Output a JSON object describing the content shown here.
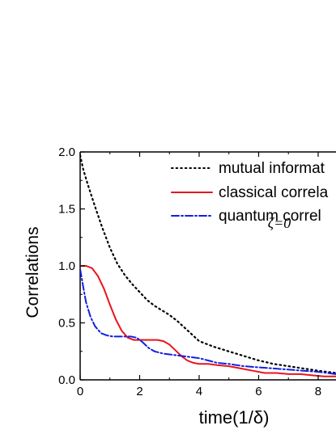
{
  "chart_data": {
    "type": "line",
    "xlabel": "time(1/δ)",
    "ylabel": "Correlations",
    "xlim": [
      0,
      8.6
    ],
    "ylim": [
      0,
      2.0
    ],
    "xticks": [
      0,
      2,
      4,
      6,
      8
    ],
    "xtick_labels": [
      "0",
      "2",
      "4",
      "6",
      "8"
    ],
    "yticks": [
      0,
      0.5,
      1.0,
      1.5,
      2.0
    ],
    "ytick_labels": [
      "0.0",
      "0.5",
      "1.0",
      "1.5",
      "2.0"
    ],
    "annotation": "ζ=0",
    "legend_position": "top-right",
    "series": [
      {
        "name": "mutual informat",
        "color": "#000000",
        "style": "dotted",
        "x": [
          0,
          0.1,
          0.25,
          0.5,
          0.75,
          1,
          1.25,
          1.5,
          1.75,
          2,
          2.25,
          2.5,
          2.75,
          3,
          3.25,
          3.5,
          3.75,
          4,
          4.5,
          5,
          5.5,
          6,
          6.5,
          7,
          7.5,
          8,
          8.6
        ],
        "y": [
          1.97,
          1.85,
          1.72,
          1.52,
          1.33,
          1.16,
          1.02,
          0.92,
          0.84,
          0.77,
          0.7,
          0.65,
          0.61,
          0.57,
          0.52,
          0.46,
          0.4,
          0.34,
          0.29,
          0.25,
          0.21,
          0.17,
          0.14,
          0.12,
          0.1,
          0.08,
          0.06
        ]
      },
      {
        "name": "classical correla",
        "color": "#e8141b",
        "style": "solid",
        "x": [
          0,
          0.2,
          0.4,
          0.6,
          0.8,
          1,
          1.2,
          1.4,
          1.6,
          1.8,
          2,
          2.2,
          2.4,
          2.6,
          2.8,
          3,
          3.2,
          3.4,
          3.6,
          3.8,
          4,
          4.3,
          4.6,
          5,
          5.4,
          5.8,
          6.2,
          6.6,
          7,
          7.4,
          7.8,
          8.2,
          8.6
        ],
        "y": [
          1.0,
          1.0,
          0.98,
          0.91,
          0.8,
          0.66,
          0.53,
          0.43,
          0.37,
          0.35,
          0.35,
          0.35,
          0.35,
          0.35,
          0.34,
          0.31,
          0.26,
          0.21,
          0.17,
          0.15,
          0.14,
          0.14,
          0.13,
          0.12,
          0.1,
          0.08,
          0.06,
          0.06,
          0.05,
          0.05,
          0.04,
          0.03,
          0.03
        ]
      },
      {
        "name": "quantum correl",
        "color": "#1020e0",
        "style": "dashdot",
        "x": [
          0,
          0.1,
          0.2,
          0.35,
          0.5,
          0.7,
          0.9,
          1.1,
          1.3,
          1.5,
          1.7,
          1.9,
          2.1,
          2.3,
          2.5,
          2.8,
          3.1,
          3.4,
          3.7,
          4,
          4.3,
          4.6,
          5,
          5.5,
          6,
          6.5,
          7,
          7.5,
          8,
          8.6
        ],
        "y": [
          0.97,
          0.82,
          0.68,
          0.55,
          0.47,
          0.41,
          0.39,
          0.38,
          0.38,
          0.38,
          0.38,
          0.37,
          0.33,
          0.28,
          0.25,
          0.23,
          0.22,
          0.21,
          0.2,
          0.19,
          0.17,
          0.15,
          0.14,
          0.12,
          0.11,
          0.1,
          0.09,
          0.08,
          0.07,
          0.05
        ]
      }
    ]
  }
}
